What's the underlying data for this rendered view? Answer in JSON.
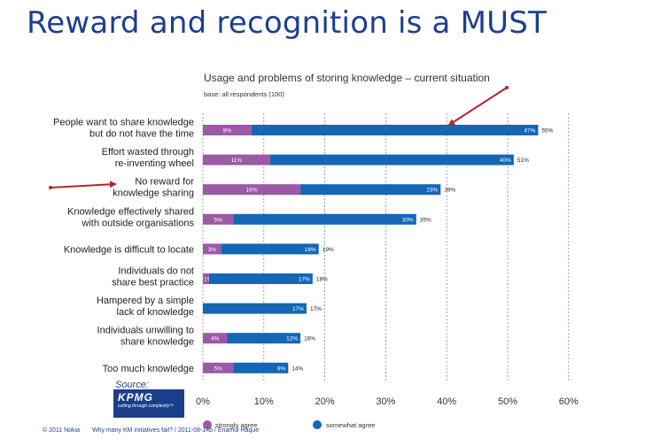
{
  "slide_title": "Reward and recognition is a MUST",
  "source_label": "Source:",
  "logo": {
    "name": "KPMG",
    "tagline": "cutting through complexity™"
  },
  "footer": {
    "copyright": "© 2011 Nokia",
    "info": "Why many KM initiatives fail? / 2011-08-14b / Enamul Haque"
  },
  "colors": {
    "title": "#1e3f8f",
    "strongly": "#9b59a6",
    "somewhat": "#1566b5",
    "arrow": "#b5242a"
  },
  "chart_data": {
    "type": "bar",
    "orientation": "horizontal",
    "stacked": true,
    "title": "Usage and problems of storing knowledge – current situation",
    "subtitle": "base: all respondents (100)",
    "categories": [
      "People want to share knowledge|but do not have the time",
      "Effort wasted through|re-inventing wheel",
      "No reward for|knowledge sharing",
      "Knowledge effectively shared|with outside organisations",
      "Knowledge is difficult to locate",
      "Individuals do not|share best practice",
      "Hampered by a simple|lack of knowledge",
      "Individuals unwilling to|share knowledge",
      "Too much knowledge"
    ],
    "series": [
      {
        "name": "strongly agree",
        "values": [
          8,
          11,
          16,
          5,
          3,
          1,
          0,
          4,
          5
        ],
        "labels": [
          "8%",
          "11%",
          "16%",
          "5%",
          "3%",
          "1%",
          "",
          "4%",
          "5%"
        ]
      },
      {
        "name": "somewhat agree",
        "values": [
          47,
          40,
          23,
          30,
          16,
          17,
          17,
          12,
          9
        ],
        "labels": [
          "47%",
          "40%",
          "23%",
          "30%",
          "16%",
          "17%",
          "17%",
          "12%",
          "9%"
        ]
      }
    ],
    "totals": [
      "55%",
      "51%",
      "39%",
      "35%",
      "19%",
      "18%",
      "17%",
      "16%",
      "14%"
    ],
    "xlim": [
      0,
      60
    ],
    "xticks": [
      "0%",
      "10%",
      "20%",
      "30%",
      "40%",
      "50%",
      "60%"
    ],
    "gridlines": true,
    "legend": [
      "strongly agree",
      "somewhat agree"
    ],
    "legend_position": "bottom",
    "annotations": [
      "arrow pointing to bar 1",
      "arrow pointing to category 3"
    ]
  }
}
